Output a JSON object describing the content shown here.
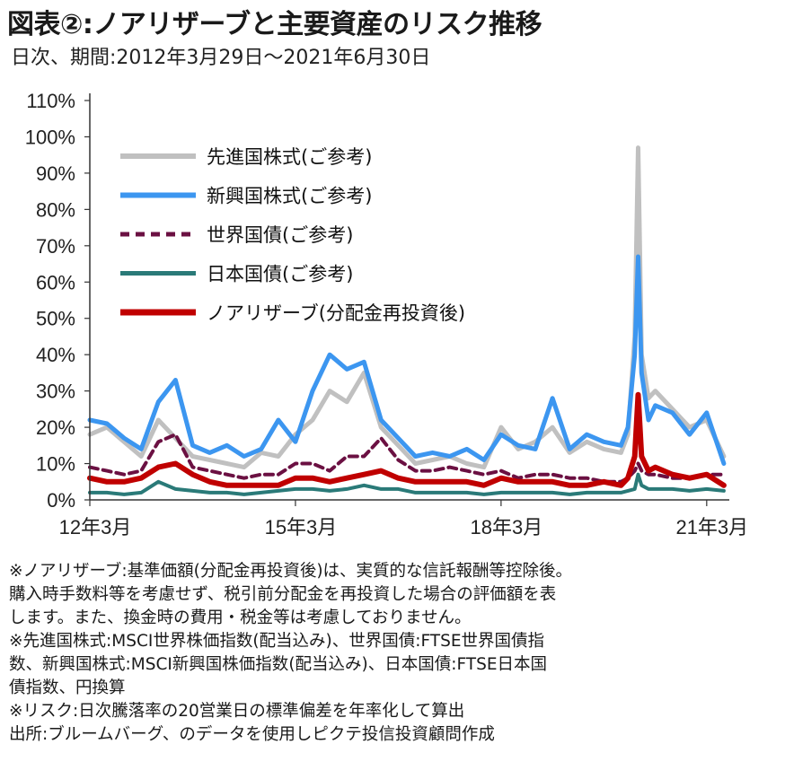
{
  "title": "図表②:ノアリザーブと主要資産のリスク推移",
  "subtitle": "日次、期間:2012年3月29日～2021年6月30日",
  "colors": {
    "developed": "#c0c0c0",
    "emerging": "#3c96f0",
    "world_bonds": "#6b1042",
    "japan_bonds": "#2a7a78",
    "noah": "#c00000"
  },
  "chart_data": {
    "type": "line",
    "title": "",
    "xlabel": "",
    "ylabel": "",
    "ylim": [
      0,
      110
    ],
    "yticks": [
      "110%",
      "100%",
      "90%",
      "80%",
      "70%",
      "60%",
      "50%",
      "40%",
      "30%",
      "20%",
      "10%",
      "0%"
    ],
    "xticks": [
      "12年3月",
      "15年3月",
      "18年3月",
      "21年3月"
    ],
    "grid": false,
    "legend_position": "top-left",
    "x": [
      2012.25,
      2012.5,
      2012.75,
      2013.0,
      2013.25,
      2013.5,
      2013.75,
      2014.0,
      2014.25,
      2014.5,
      2014.75,
      2015.0,
      2015.25,
      2015.5,
      2015.75,
      2016.0,
      2016.25,
      2016.5,
      2016.75,
      2017.0,
      2017.25,
      2017.5,
      2017.75,
      2018.0,
      2018.25,
      2018.5,
      2018.75,
      2019.0,
      2019.25,
      2019.5,
      2019.75,
      2020.0,
      2020.1,
      2020.2,
      2020.25,
      2020.3,
      2020.4,
      2020.5,
      2020.75,
      2021.0,
      2021.25,
      2021.5
    ],
    "series": [
      {
        "name": "先進国株式(ご参考)",
        "style": "solid",
        "width": 5,
        "values": [
          18,
          20,
          16,
          12,
          22,
          17,
          12,
          11,
          10,
          9,
          13,
          12,
          18,
          22,
          30,
          27,
          35,
          20,
          15,
          10,
          11,
          12,
          10,
          9,
          20,
          14,
          16,
          20,
          13,
          16,
          14,
          13,
          18,
          45,
          97,
          40,
          28,
          30,
          25,
          20,
          22,
          12
        ]
      },
      {
        "name": "新興国株式(ご参考)",
        "style": "solid",
        "width": 5,
        "values": [
          22,
          21,
          17,
          14,
          27,
          33,
          15,
          13,
          15,
          12,
          14,
          22,
          16,
          30,
          40,
          36,
          38,
          22,
          17,
          12,
          13,
          12,
          14,
          11,
          18,
          15,
          14,
          28,
          14,
          18,
          16,
          15,
          20,
          40,
          67,
          35,
          22,
          26,
          24,
          18,
          24,
          10
        ]
      },
      {
        "name": "世界国債(ご参考)",
        "style": "dashed",
        "width": 4,
        "values": [
          9,
          8,
          7,
          8,
          16,
          18,
          9,
          8,
          7,
          6,
          7,
          7,
          10,
          10,
          8,
          12,
          12,
          17,
          11,
          8,
          8,
          9,
          8,
          7,
          8,
          6,
          7,
          7,
          6,
          6,
          5,
          5,
          6,
          8,
          10,
          8,
          7,
          7,
          6,
          6,
          7,
          7
        ]
      },
      {
        "name": "日本国債(ご参考)",
        "style": "solid",
        "width": 4,
        "values": [
          2,
          2,
          1.5,
          2,
          5,
          3,
          2.5,
          2,
          2,
          1.5,
          2,
          2.5,
          3,
          3,
          2.5,
          3,
          4,
          3,
          3,
          2,
          2,
          2,
          2,
          1.5,
          2,
          2,
          2,
          2,
          1.5,
          2,
          2,
          2,
          2.5,
          3,
          7,
          4,
          3,
          3,
          3,
          2.5,
          3,
          2.5
        ]
      },
      {
        "name": "ノアリザーブ(分配金再投資後)",
        "style": "solid",
        "width": 6,
        "values": [
          6,
          5,
          5,
          6,
          9,
          10,
          7,
          5,
          4,
          4,
          4,
          4,
          6,
          6,
          5,
          6,
          7,
          8,
          6,
          5,
          5,
          5,
          5,
          4,
          6,
          5,
          5,
          5,
          4,
          4,
          5,
          4,
          6,
          12,
          29,
          12,
          8,
          9,
          7,
          6,
          7,
          4
        ]
      }
    ]
  },
  "notes": [
    "※ノアリザーブ:基準価額(分配金再投資後)は、実質的な信託報酬等控除後。",
    "購入時手数料等を考慮せず、税引前分配金を再投資した場合の評価額を表",
    "します。また、換金時の費用・税金等は考慮しておりません。",
    "※先進国株式:MSCI世界株価指数(配当込み)、世界国債:FTSE世界国債指",
    "数、新興国株式:MSCI新興国株価指数(配当込み)、日本国債:FTSE日本国",
    "債指数、円換算",
    "※リスク:日次騰落率の20営業日の標準偏差を年率化して算出",
    "出所:ブルームバーグ、のデータを使用しピクテ投信投資顧問作成"
  ]
}
